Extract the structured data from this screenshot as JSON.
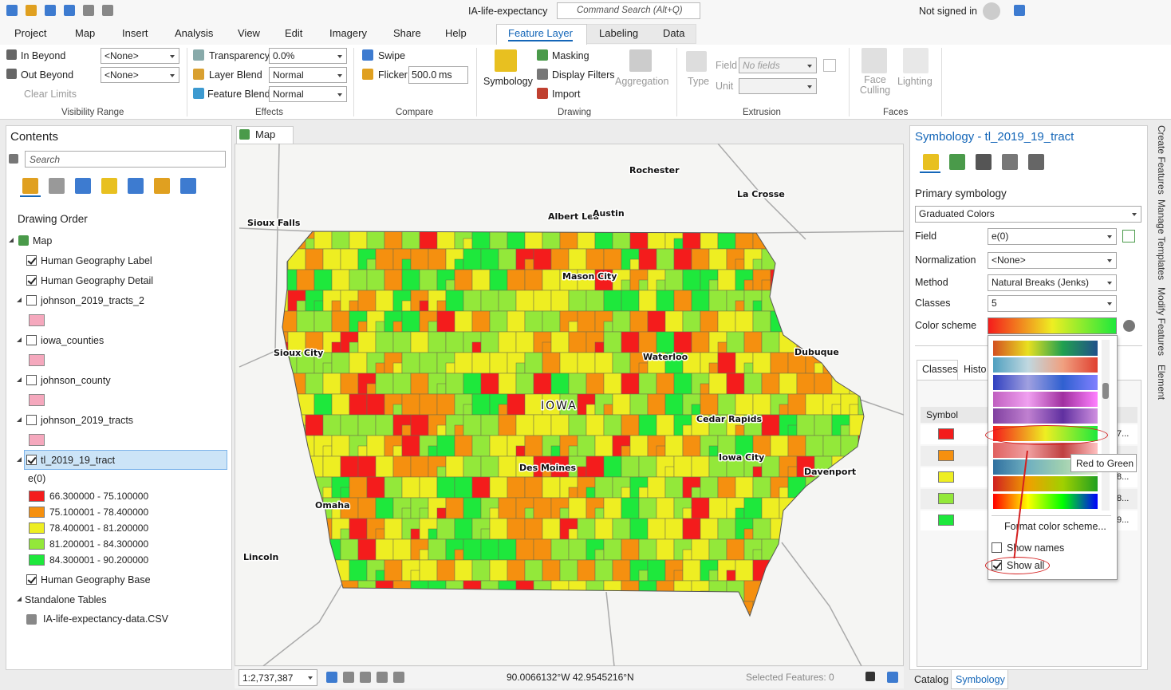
{
  "title_bar": {
    "app_title": "IA-life-expectancy",
    "search": "Command Search (Alt+Q)",
    "user": "Not signed in"
  },
  "ribbon_tabs": [
    "Project",
    "Map",
    "Insert",
    "Analysis",
    "View",
    "Edit",
    "Imagery",
    "Share",
    "Help",
    "Feature Layer",
    "Labeling",
    "Data"
  ],
  "ribbon": {
    "visibility_range": {
      "label": "Visibility Range",
      "in_beyond": "In Beyond",
      "in_value": "<None>",
      "out_beyond": "Out Beyond",
      "out_value": "<None>",
      "clear_limits": "Clear Limits"
    },
    "effects": {
      "label": "Effects",
      "transparency": "Transparency",
      "transparency_value": "0.0%",
      "layer_blend": "Layer Blend",
      "layer_blend_value": "Normal",
      "feature_blend": "Feature Blend",
      "feature_blend_value": "Normal"
    },
    "compare": {
      "label": "Compare",
      "swipe": "Swipe",
      "flicker": "Flicker",
      "flicker_value": "500.0",
      "flicker_unit": "ms"
    },
    "drawing": {
      "label": "Drawing",
      "symbology": "Symbology",
      "masking": "Masking",
      "display_filters": "Display Filters",
      "import": "Import",
      "aggregation": "Aggregation"
    },
    "extrusion": {
      "label": "Extrusion",
      "type": "Type",
      "field": "Field",
      "field_value": "No fields",
      "unit": "Unit"
    },
    "faces": {
      "label": "Faces",
      "face_culling": "Face Culling",
      "lighting": "Lighting"
    }
  },
  "contents": {
    "title": "Contents",
    "search": "Search",
    "drawing_order": "Drawing Order",
    "map": "Map",
    "layers": [
      {
        "name": "Human Geography Label",
        "checked": true,
        "expandable": false
      },
      {
        "name": "Human Geography Detail",
        "checked": true,
        "expandable": false
      },
      {
        "name": "johnson_2019_tracts_2",
        "checked": false,
        "expandable": true,
        "swatch": "#f5a8bd"
      },
      {
        "name": "iowa_counties",
        "checked": false,
        "expandable": true,
        "swatch": "#f5a8bd"
      },
      {
        "name": "johnson_county",
        "checked": false,
        "expandable": true,
        "swatch": "#f5a8bd"
      },
      {
        "name": "johnson_2019_tracts",
        "checked": false,
        "expandable": true,
        "swatch": "#f5a8bd"
      },
      {
        "name": "tl_2019_19_tract",
        "checked": true,
        "expandable": true,
        "selected": true,
        "legend": {
          "field": "e(0)",
          "classes": [
            {
              "label": "66.300000 - 75.100000",
              "color": "#f41c1c"
            },
            {
              "label": "75.100001 - 78.400000",
              "color": "#f5900f"
            },
            {
              "label": "78.400001 - 81.200000",
              "color": "#eeee22"
            },
            {
              "label": "81.200001 - 84.300000",
              "color": "#93e83a"
            },
            {
              "label": "84.300001 - 90.200000",
              "color": "#1ee83c"
            }
          ]
        }
      },
      {
        "name": "Human Geography Base",
        "checked": true,
        "expandable": false
      }
    ],
    "standalone_tables": "Standalone Tables",
    "table": "IA-life-expectancy-data.CSV"
  },
  "map": {
    "tab": "Map",
    "labels": [
      "Rochester",
      "La Crosse",
      "Albert Lea",
      "Austin",
      "Sioux Falls",
      "Mason City",
      "Sioux City",
      "Waterloo",
      "Dubuque",
      "IOWA",
      "Cedar Rapids",
      "Iowa City",
      "Des Moines",
      "Davenport",
      "Omaha",
      "Lincoln"
    ],
    "scale": "1:2,737,387",
    "coordinates": "90.0066132°W 42.9545216°N",
    "selected_features": "Selected Features: 0"
  },
  "symbology": {
    "title": "Symbology - tl_2019_19_tract",
    "primary_symbology": "Primary symbology",
    "renderer": "Graduated Colors",
    "fields": [
      {
        "label": "Field",
        "value": "e(0)"
      },
      {
        "label": "Normalization",
        "value": "<None>"
      },
      {
        "label": "Method",
        "value": "Natural Breaks (Jenks)"
      },
      {
        "label": "Classes",
        "value": "5"
      }
    ],
    "color_scheme": "Color scheme",
    "tabs": [
      "Classes",
      "Histo"
    ],
    "symbol_header": "Symbol",
    "class_values": [
      "7...",
      "8...",
      "8...",
      "9..."
    ],
    "dropdown": {
      "format": "Format color scheme...",
      "show_names": "Show names",
      "show_all": "Show all",
      "tooltip": "Red to Green"
    }
  },
  "side_tabs": [
    "Create Features",
    "Manage Templates",
    "Modify Features",
    "Element"
  ],
  "bottom_tabs": [
    "Catalog",
    "Symbology"
  ]
}
